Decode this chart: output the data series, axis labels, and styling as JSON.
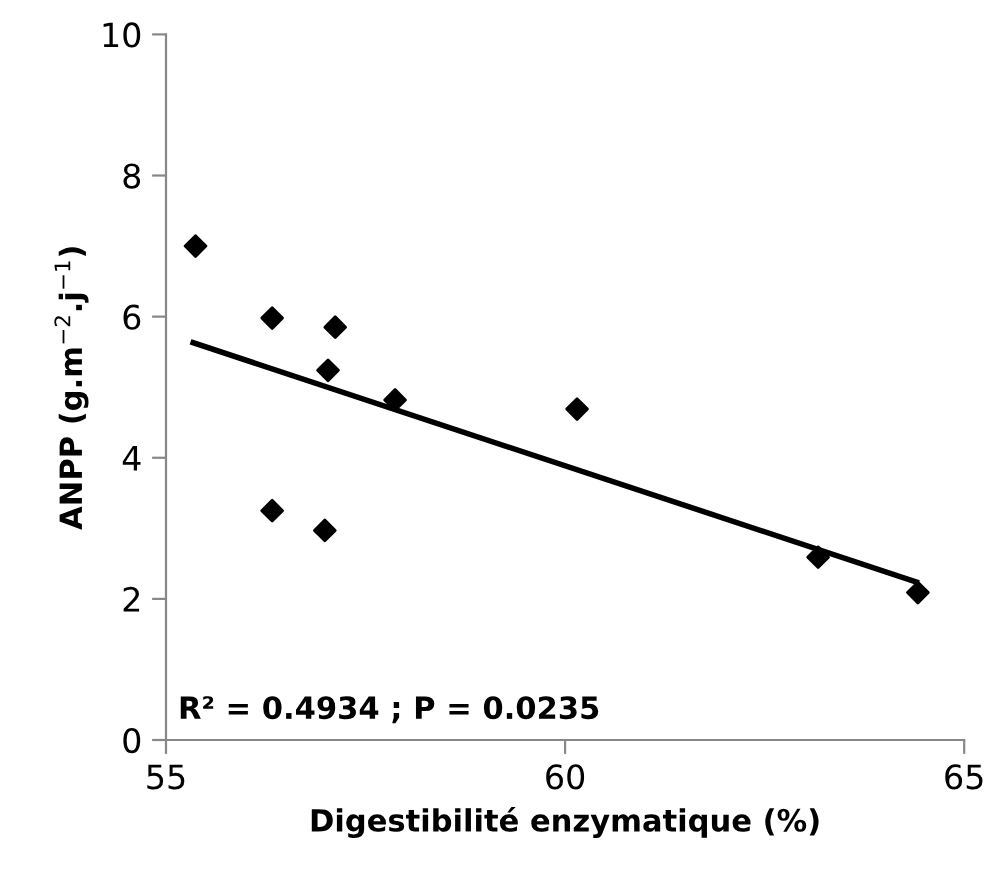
{
  "chart_data": {
    "type": "scatter",
    "xlabel": "Digestibilité enzymatique (%)",
    "ylabel": "ANPP (g.m$^{−2}$.j$^{−1}$)",
    "xlim": [
      55,
      65
    ],
    "xticks": [
      55,
      60,
      65
    ],
    "ylim": [
      0,
      10
    ],
    "yticks": [
      0,
      2,
      4,
      6,
      8,
      10
    ],
    "grid": false,
    "legend": false,
    "series": [
      {
        "marker": "diamond",
        "color": "#000000",
        "x": [
          55.37,
          56.33,
          57.12,
          57.03,
          57.87,
          56.33,
          56.99,
          60.15,
          63.17,
          64.42
        ],
        "values": [
          7.0,
          5.98,
          5.85,
          5.24,
          4.82,
          3.25,
          2.97,
          4.69,
          2.59,
          2.09
        ]
      },
      {
        "type": "line",
        "color": "#000000",
        "line_style": "solid",
        "x": [
          55.34,
          64.4
        ],
        "values": [
          5.63,
          2.24
        ]
      }
    ],
    "annotations": [
      "R² = 0.4934 ; P = 0.0235"
    ]
  }
}
